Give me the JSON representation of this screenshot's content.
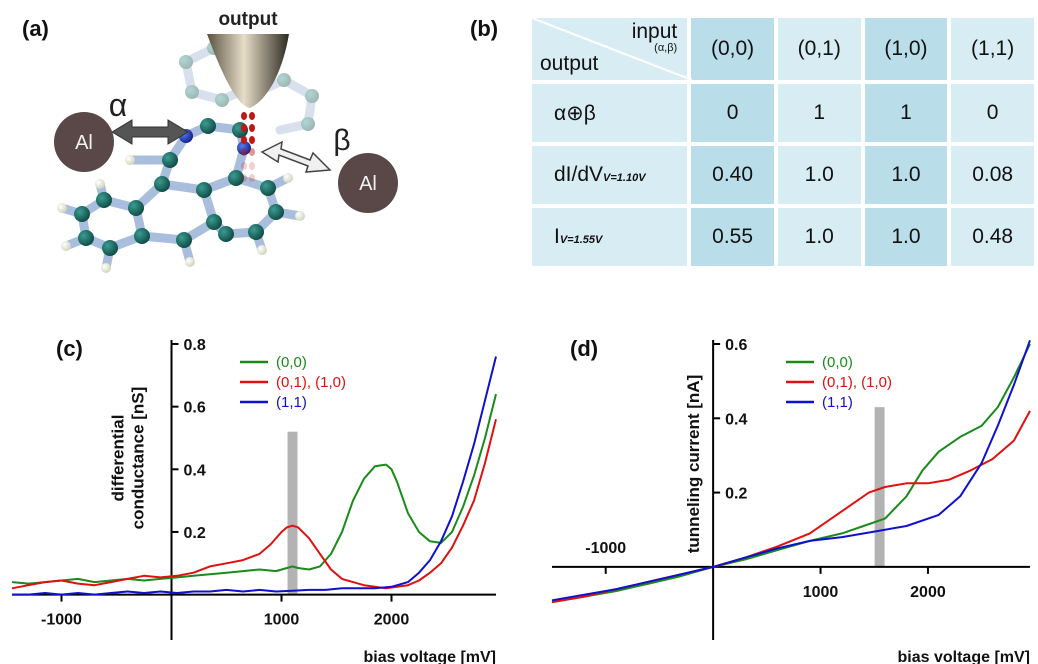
{
  "panels": {
    "a": "(a)",
    "b": "(b)",
    "c": "(c)",
    "d": "(d)"
  },
  "molecule": {
    "tip_label": "output",
    "electrode_alpha": "Al",
    "electrode_beta": "Al",
    "alpha": "α",
    "beta": "β"
  },
  "truth_table": {
    "corner_input": "input",
    "corner_input_sub": "(α,β)",
    "corner_output": "output",
    "columns": [
      "(0,0)",
      "(0,1)",
      "(1,0)",
      "(1,1)"
    ],
    "rows": [
      {
        "label": "α⊕β",
        "sub": "",
        "values": [
          "0",
          "1",
          "1",
          "0"
        ]
      },
      {
        "label": "dI/dV",
        "sub": "V=1.10V",
        "values": [
          "0.40",
          "1.0",
          "1.0",
          "0.08"
        ]
      },
      {
        "label": "I",
        "sub": "V=1.55V",
        "values": [
          "0.55",
          "1.0",
          "1.0",
          "0.48"
        ]
      }
    ]
  },
  "chart_data": [
    {
      "type": "line",
      "panel": "(c)",
      "xlabel": "bias voltage [mV]",
      "ylabel": "differential conductance [nS]",
      "ylabel_lines": [
        "differential",
        "conductance [nS]"
      ],
      "xlim": [
        -1450,
        2950
      ],
      "ylim": [
        -0.03,
        0.8
      ],
      "xticks": [
        -1000,
        1000,
        2000
      ],
      "yticks": [
        0.2,
        0.4,
        0.6,
        0.8
      ],
      "highlight_x": 1100,
      "highlight_y": [
        0.0,
        0.52
      ],
      "legend_position": "top-center",
      "series": [
        {
          "name": "(0,0)",
          "color": "#1a8a1a",
          "x": [
            -1450,
            -1300,
            -1150,
            -1000,
            -850,
            -700,
            -550,
            -400,
            -250,
            -100,
            50,
            200,
            350,
            500,
            650,
            800,
            950,
            1050,
            1100,
            1150,
            1250,
            1350,
            1450,
            1550,
            1650,
            1750,
            1850,
            1950,
            2000,
            2050,
            2150,
            2250,
            2350,
            2450,
            2550,
            2650,
            2750,
            2850,
            2950
          ],
          "y": [
            0.04,
            0.035,
            0.04,
            0.045,
            0.05,
            0.04,
            0.045,
            0.05,
            0.045,
            0.05,
            0.055,
            0.06,
            0.065,
            0.07,
            0.075,
            0.08,
            0.075,
            0.085,
            0.09,
            0.085,
            0.08,
            0.09,
            0.13,
            0.2,
            0.3,
            0.37,
            0.41,
            0.415,
            0.4,
            0.36,
            0.26,
            0.2,
            0.17,
            0.165,
            0.2,
            0.28,
            0.38,
            0.5,
            0.64
          ]
        },
        {
          "name": "(0,1), (1,0)",
          "color": "#e01010",
          "x": [
            -1450,
            -1300,
            -1150,
            -1000,
            -850,
            -700,
            -550,
            -400,
            -250,
            -100,
            50,
            200,
            350,
            500,
            650,
            800,
            900,
            1000,
            1050,
            1100,
            1150,
            1250,
            1350,
            1450,
            1550,
            1650,
            1750,
            1850,
            1950,
            2050,
            2150,
            2250,
            2350,
            2450,
            2550,
            2650,
            2750,
            2850,
            2950
          ],
          "y": [
            0.02,
            0.03,
            0.04,
            0.045,
            0.035,
            0.03,
            0.04,
            0.05,
            0.06,
            0.055,
            0.06,
            0.07,
            0.09,
            0.1,
            0.11,
            0.13,
            0.16,
            0.2,
            0.215,
            0.22,
            0.215,
            0.18,
            0.13,
            0.08,
            0.05,
            0.04,
            0.03,
            0.025,
            0.02,
            0.025,
            0.03,
            0.045,
            0.07,
            0.1,
            0.15,
            0.22,
            0.3,
            0.42,
            0.56
          ]
        },
        {
          "name": "(1,1)",
          "color": "#1010d0",
          "x": [
            -1450,
            -1300,
            -1150,
            -1000,
            -850,
            -700,
            -550,
            -400,
            -250,
            -100,
            50,
            200,
            350,
            500,
            650,
            800,
            950,
            1100,
            1250,
            1400,
            1550,
            1700,
            1850,
            2000,
            2150,
            2250,
            2350,
            2450,
            2550,
            2650,
            2750,
            2850,
            2950
          ],
          "y": [
            0.0,
            0.0,
            0.005,
            0.0,
            0.005,
            0.0,
            0.005,
            0.01,
            0.005,
            0.01,
            0.005,
            0.01,
            0.01,
            0.015,
            0.01,
            0.015,
            0.01,
            0.012,
            0.015,
            0.015,
            0.02,
            0.02,
            0.02,
            0.025,
            0.04,
            0.07,
            0.11,
            0.17,
            0.25,
            0.36,
            0.48,
            0.62,
            0.76
          ]
        }
      ]
    },
    {
      "type": "line",
      "panel": "(d)",
      "xlabel": "bias voltage [mV]",
      "ylabel": "tunneling current [nA]",
      "xlim": [
        -1500,
        2950
      ],
      "ylim": [
        -0.1,
        0.6
      ],
      "xticks": [
        -1000,
        1000,
        2000
      ],
      "yticks": [
        0.2,
        0.4,
        0.6
      ],
      "highlight_x": 1550,
      "highlight_y": [
        0.0,
        0.43
      ],
      "legend_position": "top-center",
      "series": [
        {
          "name": "(0,0)",
          "color": "#1a8a1a",
          "x": [
            -1500,
            -1200,
            -900,
            -600,
            -300,
            0,
            300,
            600,
            900,
            1200,
            1400,
            1600,
            1800,
            1950,
            2100,
            2300,
            2500,
            2650,
            2800,
            2950
          ],
          "y": [
            -0.095,
            -0.08,
            -0.065,
            -0.045,
            -0.025,
            0.0,
            0.02,
            0.045,
            0.07,
            0.09,
            0.11,
            0.13,
            0.19,
            0.26,
            0.31,
            0.35,
            0.38,
            0.43,
            0.51,
            0.6
          ]
        },
        {
          "name": "(0,1), (1,0)",
          "color": "#e01010",
          "x": [
            -1500,
            -1200,
            -900,
            -600,
            -300,
            0,
            300,
            600,
            900,
            1100,
            1300,
            1450,
            1600,
            1800,
            2000,
            2200,
            2400,
            2600,
            2800,
            2950
          ],
          "y": [
            -0.095,
            -0.08,
            -0.06,
            -0.04,
            -0.02,
            0.0,
            0.025,
            0.055,
            0.09,
            0.13,
            0.17,
            0.2,
            0.215,
            0.225,
            0.225,
            0.235,
            0.26,
            0.29,
            0.34,
            0.42
          ]
        },
        {
          "name": "(1,1)",
          "color": "#1010d0",
          "x": [
            -1500,
            -1200,
            -900,
            -600,
            -300,
            0,
            300,
            600,
            900,
            1200,
            1500,
            1800,
            2100,
            2300,
            2500,
            2650,
            2800,
            2950
          ],
          "y": [
            -0.09,
            -0.075,
            -0.06,
            -0.04,
            -0.02,
            0.0,
            0.025,
            0.05,
            0.07,
            0.08,
            0.095,
            0.11,
            0.14,
            0.19,
            0.28,
            0.38,
            0.49,
            0.61
          ]
        }
      ]
    }
  ]
}
